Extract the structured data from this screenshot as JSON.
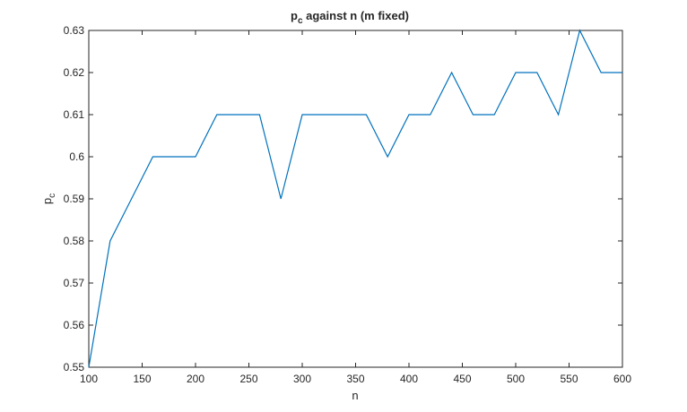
{
  "chart_data": {
    "type": "line",
    "title": {
      "prefix": "p",
      "subscript": "c",
      "rest": "against n (m fixed)"
    },
    "xlabel": "n",
    "ylabel": {
      "main": "p",
      "subscript": "c"
    },
    "xlim": [
      100,
      600
    ],
    "ylim": [
      0.55,
      0.63
    ],
    "xticks": [
      100,
      150,
      200,
      250,
      300,
      350,
      400,
      450,
      500,
      550,
      600
    ],
    "xtick_labels": [
      "100",
      "150",
      "200",
      "250",
      "300",
      "350",
      "400",
      "450",
      "500",
      "550",
      "600"
    ],
    "yticks": [
      0.55,
      0.56,
      0.57,
      0.58,
      0.59,
      0.6,
      0.61,
      0.62,
      0.63
    ],
    "ytick_labels": [
      "0.55",
      "0.56",
      "0.57",
      "0.58",
      "0.59",
      "0.6",
      "0.61",
      "0.62",
      "0.63"
    ],
    "grid": false,
    "series": [
      {
        "color": "#0072bd",
        "x": [
          100,
          120,
          140,
          160,
          180,
          200,
          220,
          240,
          260,
          280,
          300,
          320,
          340,
          360,
          380,
          400,
          420,
          440,
          460,
          480,
          500,
          520,
          540,
          560,
          580,
          600
        ],
        "y": [
          0.55,
          0.58,
          0.59,
          0.6,
          0.6,
          0.6,
          0.61,
          0.61,
          0.61,
          0.59,
          0.61,
          0.61,
          0.61,
          0.61,
          0.6,
          0.61,
          0.61,
          0.62,
          0.61,
          0.61,
          0.62,
          0.62,
          0.61,
          0.63,
          0.62,
          0.62
        ]
      }
    ]
  }
}
